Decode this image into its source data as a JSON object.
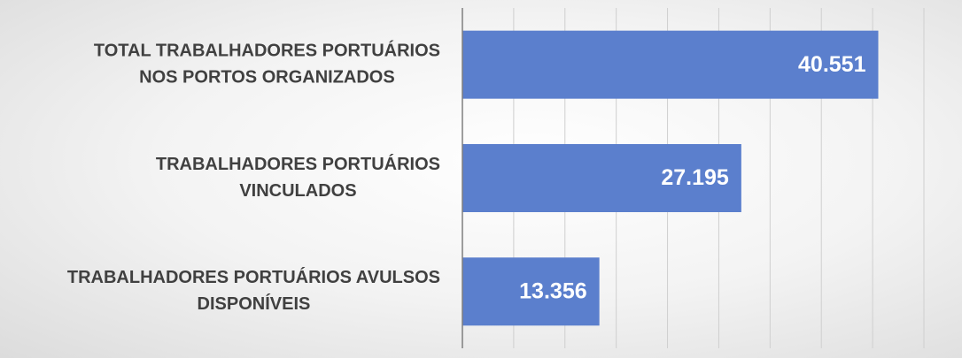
{
  "chart_data": {
    "type": "barh",
    "categories": [
      [
        "TOTAL TRABALHADORES PORTUÁRIOS",
        "NOS PORTOS ORGANIZADOS"
      ],
      [
        "TRABALHADORES PORTUÁRIOS",
        "VINCULADOS"
      ],
      [
        "TRABALHADORES PORTUÁRIOS AVULSOS",
        "DISPONÍVEIS"
      ]
    ],
    "values": [
      40551,
      27195,
      13356
    ],
    "value_labels": [
      "40.551",
      "27.195",
      "13.356"
    ],
    "color": "#5b7fcd",
    "xlim": [
      0,
      45000
    ],
    "xticks": [
      0,
      5000,
      10000,
      15000,
      20000,
      25000,
      30000,
      35000,
      40000,
      45000
    ],
    "grid": true
  }
}
